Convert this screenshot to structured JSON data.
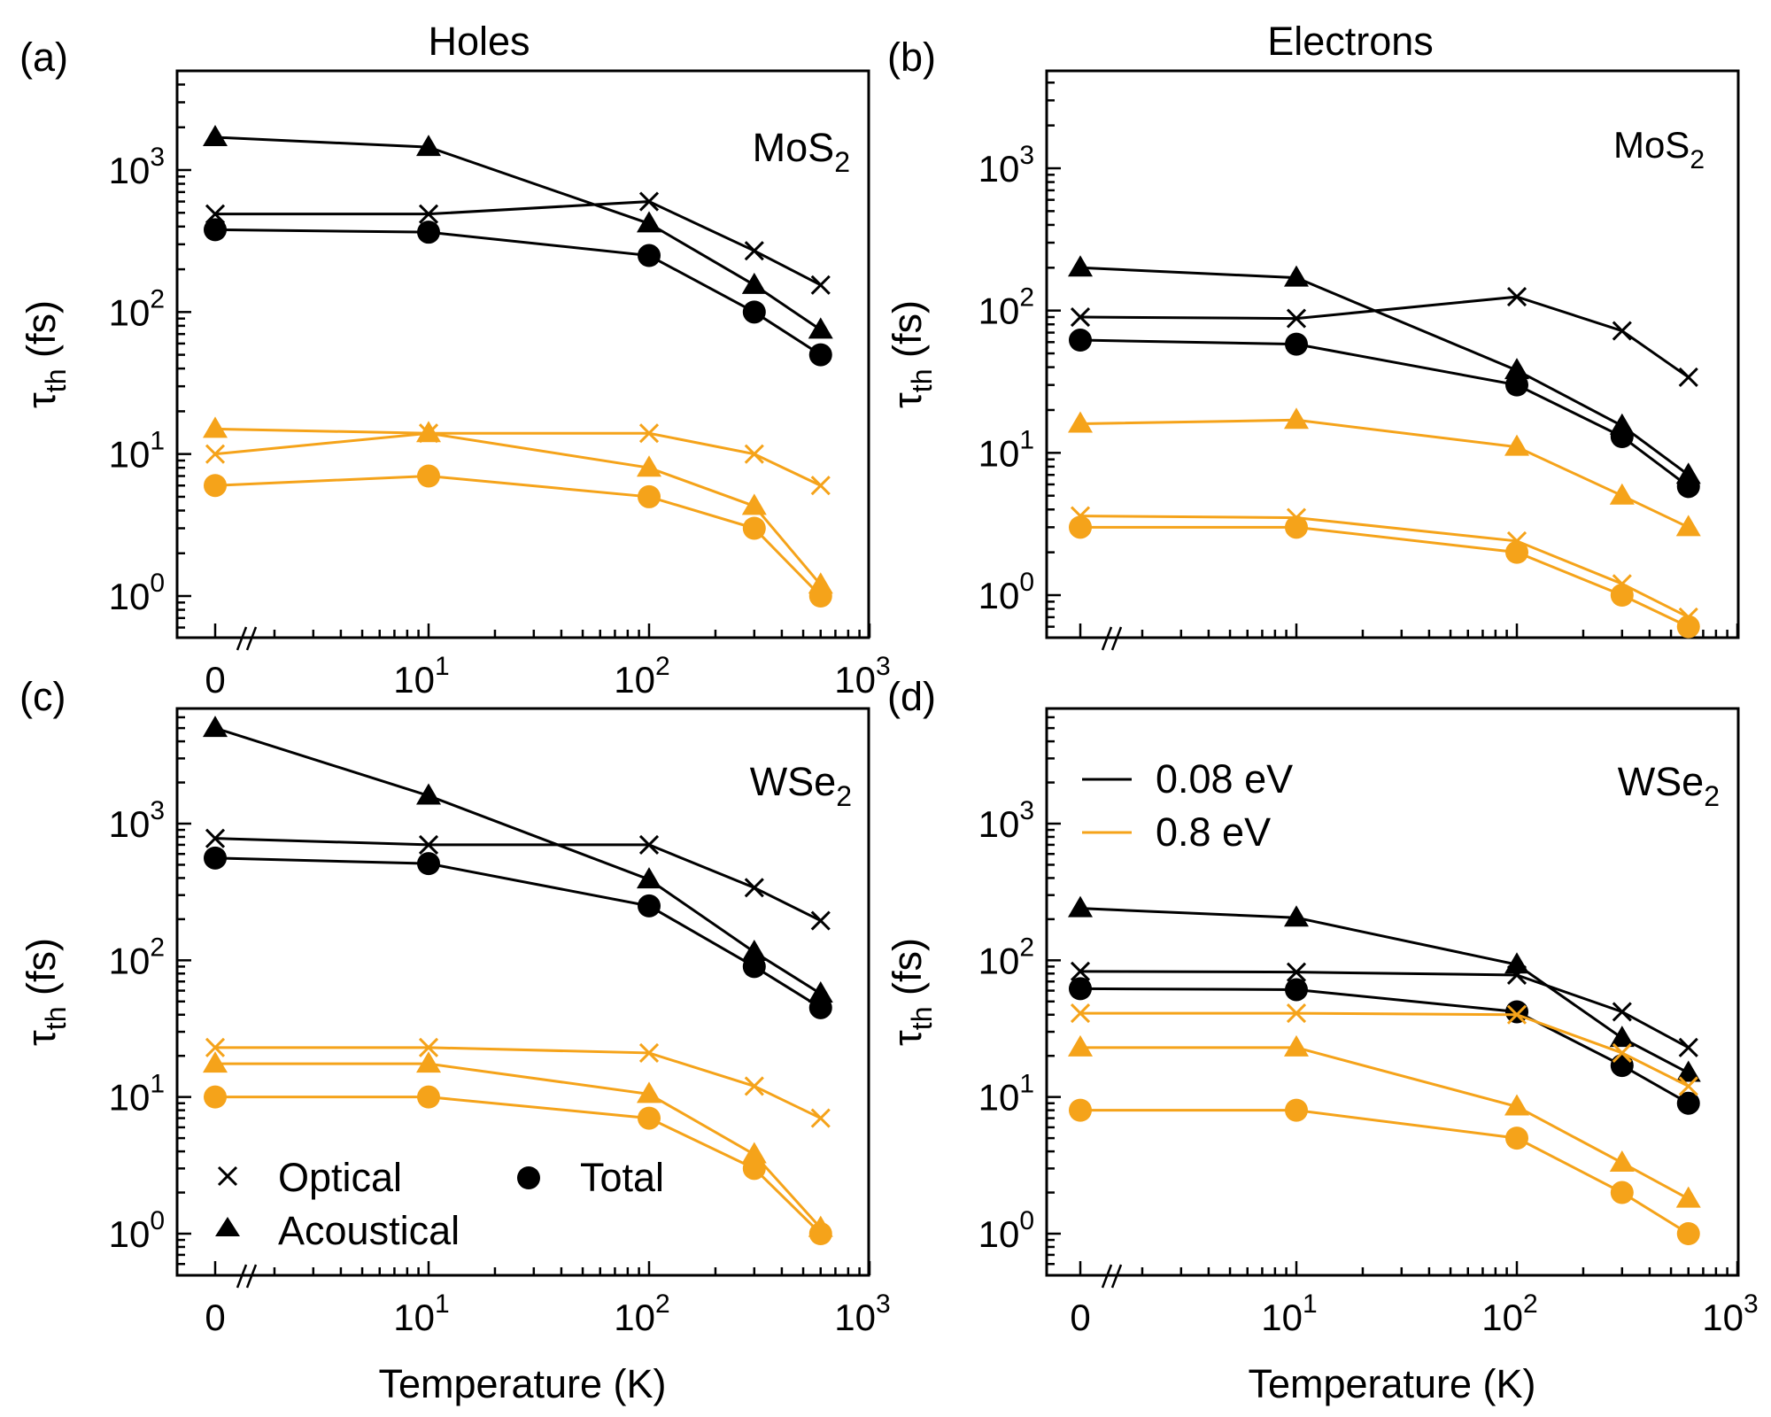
{
  "figure": {
    "column_titles": [
      "Holes",
      "Electrons"
    ],
    "xlabel": "Temperature (K)",
    "ylabel_main": "τ",
    "ylabel_sub": "th",
    "ylabel_unit": " (fs)",
    "legend_markers": {
      "optical": "Optical",
      "acoustical": "Acoustical",
      "total": "Total"
    },
    "legend_lines": [
      "0.08 eV",
      "0.8 eV"
    ],
    "colors": {
      "low": "#000000",
      "high": "#F5A31A"
    }
  },
  "chart_data": [
    {
      "panel": "(a)",
      "type": "line",
      "material_main": "MoS",
      "material_sub": "2",
      "xscale": "log (with break at 0)",
      "yscale": "log",
      "x": [
        0,
        10,
        100,
        300,
        600
      ],
      "xtick_labels": [
        {
          "base": "0",
          "exp": ""
        },
        {
          "base": "10",
          "exp": "1"
        },
        {
          "base": "10",
          "exp": "2"
        },
        {
          "base": "10",
          "exp": "3"
        }
      ],
      "ytick_labels": [
        {
          "base": "10",
          "exp": "0"
        },
        {
          "base": "10",
          "exp": "1"
        },
        {
          "base": "10",
          "exp": "2"
        },
        {
          "base": "10",
          "exp": "3"
        }
      ],
      "ylim": [
        0.6,
        5000
      ],
      "series": [
        {
          "name": "Optical 0.08 eV",
          "marker": "x",
          "color": "#000000",
          "values": [
            490,
            490,
            600,
            270,
            155
          ]
        },
        {
          "name": "Acoustical 0.08 eV",
          "marker": "triangle",
          "color": "#000000",
          "values": [
            1700,
            1450,
            420,
            155,
            75
          ]
        },
        {
          "name": "Total 0.08 eV",
          "marker": "circle",
          "color": "#000000",
          "values": [
            380,
            365,
            250,
            100,
            50
          ]
        },
        {
          "name": "Optical 0.8 eV",
          "marker": "x",
          "color": "#F5A31A",
          "values": [
            10,
            14,
            14,
            10,
            6
          ]
        },
        {
          "name": "Acoustical 0.8 eV",
          "marker": "triangle",
          "color": "#F5A31A",
          "values": [
            15,
            14,
            8,
            4.3,
            1.2
          ]
        },
        {
          "name": "Total 0.8 eV",
          "marker": "circle",
          "color": "#F5A31A",
          "values": [
            6,
            7,
            5,
            3,
            1
          ]
        }
      ]
    },
    {
      "panel": "(b)",
      "type": "line",
      "material_main": "MoS",
      "material_sub": "2",
      "xscale": "log (with break at 0)",
      "yscale": "log",
      "x": [
        0,
        10,
        100,
        300,
        600
      ],
      "xtick_labels": [],
      "ytick_labels": [
        {
          "base": "10",
          "exp": "0"
        },
        {
          "base": "10",
          "exp": "1"
        },
        {
          "base": "10",
          "exp": "2"
        },
        {
          "base": "10",
          "exp": "3"
        }
      ],
      "ylim": [
        0.6,
        5000
      ],
      "series": [
        {
          "name": "Optical 0.08 eV",
          "marker": "x",
          "color": "#000000",
          "values": [
            90,
            88,
            125,
            72,
            34
          ]
        },
        {
          "name": "Acoustical 0.08 eV",
          "marker": "triangle",
          "color": "#000000",
          "values": [
            200,
            170,
            38,
            15.5,
            7
          ]
        },
        {
          "name": "Total 0.08 eV",
          "marker": "circle",
          "color": "#000000",
          "values": [
            62,
            58,
            30,
            13,
            5.8
          ]
        },
        {
          "name": "Optical 0.8 eV",
          "marker": "x",
          "color": "#F5A31A",
          "values": [
            3.6,
            3.5,
            2.4,
            1.2,
            0.7
          ]
        },
        {
          "name": "Acoustical 0.8 eV",
          "marker": "triangle",
          "color": "#F5A31A",
          "values": [
            16,
            17,
            11,
            5,
            3
          ]
        },
        {
          "name": "Total 0.8 eV",
          "marker": "circle",
          "color": "#F5A31A",
          "values": [
            3,
            3,
            2,
            1,
            0.6
          ]
        }
      ]
    },
    {
      "panel": "(c)",
      "type": "line",
      "material_main": "WSe",
      "material_sub": "2",
      "xscale": "log (with break at 0)",
      "yscale": "log",
      "x": [
        0,
        10,
        100,
        300,
        600
      ],
      "xtick_labels": [
        {
          "base": "0",
          "exp": ""
        },
        {
          "base": "10",
          "exp": "1"
        },
        {
          "base": "10",
          "exp": "2"
        },
        {
          "base": "10",
          "exp": "3"
        }
      ],
      "ytick_labels": [
        {
          "base": "10",
          "exp": "0"
        },
        {
          "base": "10",
          "exp": "1"
        },
        {
          "base": "10",
          "exp": "2"
        },
        {
          "base": "10",
          "exp": "3"
        }
      ],
      "ylim": [
        0.6,
        7000
      ],
      "series": [
        {
          "name": "Optical 0.08 eV",
          "marker": "x",
          "color": "#000000",
          "values": [
            780,
            700,
            700,
            340,
            195
          ]
        },
        {
          "name": "Acoustical 0.08 eV",
          "marker": "triangle",
          "color": "#000000",
          "values": [
            5000,
            1600,
            390,
            115,
            57
          ]
        },
        {
          "name": "Total 0.08 eV",
          "marker": "circle",
          "color": "#000000",
          "values": [
            560,
            510,
            250,
            90,
            45
          ]
        },
        {
          "name": "Optical 0.8 eV",
          "marker": "x",
          "color": "#F5A31A",
          "values": [
            23,
            23,
            21,
            12,
            7
          ]
        },
        {
          "name": "Acoustical 0.8 eV",
          "marker": "triangle",
          "color": "#F5A31A",
          "values": [
            17.5,
            17.5,
            10.5,
            3.8,
            1.1
          ]
        },
        {
          "name": "Total 0.8 eV",
          "marker": "circle",
          "color": "#F5A31A",
          "values": [
            10,
            10,
            7,
            3,
            1
          ]
        }
      ]
    },
    {
      "panel": "(d)",
      "type": "line",
      "material_main": "WSe",
      "material_sub": "2",
      "xscale": "log (with break at 0)",
      "yscale": "log",
      "x": [
        0,
        10,
        100,
        300,
        600
      ],
      "xtick_labels": [
        {
          "base": "0",
          "exp": ""
        },
        {
          "base": "10",
          "exp": "1"
        },
        {
          "base": "10",
          "exp": "2"
        },
        {
          "base": "10",
          "exp": "3"
        }
      ],
      "ytick_labels": [
        {
          "base": "10",
          "exp": "0"
        },
        {
          "base": "10",
          "exp": "1"
        },
        {
          "base": "10",
          "exp": "2"
        },
        {
          "base": "10",
          "exp": "3"
        }
      ],
      "ylim": [
        0.6,
        7000
      ],
      "series": [
        {
          "name": "Optical 0.08 eV",
          "marker": "x",
          "color": "#000000",
          "values": [
            83,
            82,
            78,
            42,
            23
          ]
        },
        {
          "name": "Acoustical 0.08 eV",
          "marker": "triangle",
          "color": "#000000",
          "values": [
            240,
            205,
            93,
            27,
            15
          ]
        },
        {
          "name": "Total 0.08 eV",
          "marker": "circle",
          "color": "#000000",
          "values": [
            62,
            61,
            42,
            17,
            9
          ]
        },
        {
          "name": "Optical 0.8 eV",
          "marker": "x",
          "color": "#F5A31A",
          "values": [
            41,
            41,
            40,
            21,
            12
          ]
        },
        {
          "name": "Acoustical 0.8 eV",
          "marker": "triangle",
          "color": "#F5A31A",
          "values": [
            23,
            23,
            8.5,
            3.3,
            1.8
          ]
        },
        {
          "name": "Total 0.8 eV",
          "marker": "circle",
          "color": "#F5A31A",
          "values": [
            8,
            8,
            5,
            2,
            1
          ]
        }
      ]
    }
  ]
}
